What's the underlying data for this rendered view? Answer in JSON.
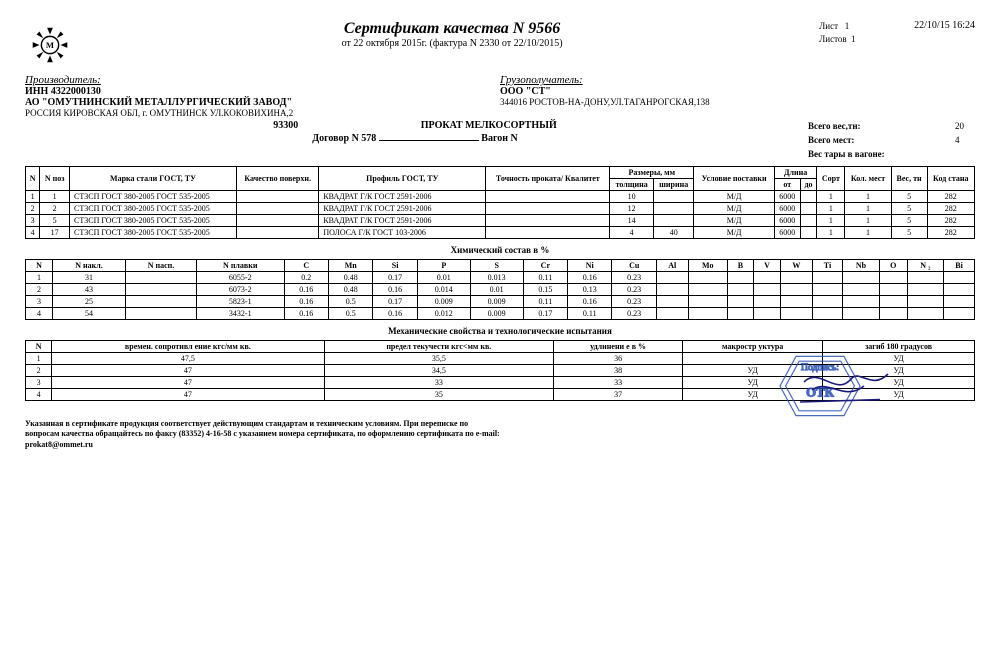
{
  "meta": {
    "title": "Сертификат качества N 9566",
    "date_line": "от  22 октября 2015г.      (фактура N  2330  от 22/10/2015)",
    "sheet_label": "Лист",
    "sheet_val": "1",
    "sheets_label": "Листов",
    "sheets_val": "1",
    "timestamp": "22/10/15   16:24"
  },
  "producer": {
    "label": "Производитель:",
    "inn": "ИНН 4322000130",
    "name": "АО \"ОМУТНИНСКИЙ МЕТАЛЛУРГИЧЕСКИЙ ЗАВОД\"",
    "addr": "РОССИЯ КИРОВСКАЯ ОБЛ, г.      ОМУТНИНСК    УЛ.КОКОВИХИНА,2"
  },
  "consignee": {
    "label": "Грузополучатель:",
    "name": "ООО \"СТ\"",
    "addr": "344016 РОСТОВ-НА-ДОНУ,УЛ.ТАГАНРОГСКАЯ,138"
  },
  "mid": {
    "code": "93300",
    "product": "ПРОКАТ МЕЛКОСОРТНЫЙ",
    "contract": "Договор N 578",
    "wagon": "Вагон N"
  },
  "totals": {
    "weight_l": "Всего вес,тн:",
    "weight_v": "20",
    "places_l": "Всего мест:",
    "places_v": "4",
    "tare_l": "Вес тары в вагоне:"
  },
  "table1": {
    "headers": {
      "n": "N",
      "npos": "N поз",
      "grade": "Марка стали ГОСТ, ТУ",
      "surf": "Качество поверхн.",
      "profile": "Профиль ГОСТ, ТУ",
      "accuracy": "Точность проката/ Квалитет",
      "dims": "Размеры, мм",
      "thick": "толщина",
      "width": "ширина",
      "cond": "Условие поставки",
      "len": "Длина",
      "from": "от",
      "to": "до",
      "sort": "Сорт",
      "qty": "Кол. мест",
      "wt": "Вес, тн",
      "mill": "Код стана"
    },
    "rows": [
      {
        "n": "1",
        "pos": "1",
        "grade": "СТ3СП  ГОСТ 380-2005  ГОСТ 535-2005",
        "profile": "КВАДРАТ Г/К   ГОСТ 2591-2006",
        "th": "10",
        "w": "",
        "cond": "М/Д",
        "from": "6000",
        "to": "",
        "sort": "1",
        "qty": "1",
        "wt": "5",
        "mill": "282"
      },
      {
        "n": "2",
        "pos": "2",
        "grade": "СТ3СП  ГОСТ 380-2005  ГОСТ 535-2005",
        "profile": "КВАДРАТ Г/К   ГОСТ 2591-2006",
        "th": "12",
        "w": "",
        "cond": "М/Д",
        "from": "6000",
        "to": "",
        "sort": "1",
        "qty": "1",
        "wt": "5",
        "mill": "282"
      },
      {
        "n": "3",
        "pos": "5",
        "grade": "СТ3СП  ГОСТ 380-2005  ГОСТ 535-2005",
        "profile": "КВАДРАТ Г/К   ГОСТ 2591-2006",
        "th": "14",
        "w": "",
        "cond": "М/Д",
        "from": "6000",
        "to": "",
        "sort": "1",
        "qty": "1",
        "wt": "5",
        "mill": "282"
      },
      {
        "n": "4",
        "pos": "17",
        "grade": "СТ3СП  ГОСТ 380-2005  ГОСТ 535-2005",
        "profile": "ПОЛОСА Г/К   ГОСТ 103-2006",
        "th": "4",
        "w": "40",
        "cond": "М/Д",
        "from": "6000",
        "to": "",
        "sort": "1",
        "qty": "1",
        "wt": "5",
        "mill": "282"
      }
    ]
  },
  "chem": {
    "title": "Химический состав в %",
    "headers": [
      "N",
      "N накл.",
      "N пасп.",
      "N плавки",
      "C",
      "Mn",
      "Si",
      "P",
      "S",
      "Cr",
      "Ni",
      "Cu",
      "Al",
      "Mo",
      "B",
      "V",
      "W",
      "Ti",
      "Nb",
      "O",
      "N ₂",
      "Bi"
    ],
    "rows": [
      [
        "1",
        "31",
        "",
        "6055-2",
        "0.2",
        "0.48",
        "0.17",
        "0.01",
        "0.013",
        "0.11",
        "0.16",
        "0.23",
        "",
        "",
        "",
        "",
        "",
        "",
        "",
        "",
        "",
        ""
      ],
      [
        "2",
        "43",
        "",
        "6073-2",
        "0.16",
        "0.48",
        "0.16",
        "0.014",
        "0.01",
        "0.15",
        "0.13",
        "0.23",
        "",
        "",
        "",
        "",
        "",
        "",
        "",
        "",
        "",
        ""
      ],
      [
        "3",
        "25",
        "",
        "5823-1",
        "0.16",
        "0.5",
        "0.17",
        "0.009",
        "0.009",
        "0.11",
        "0.16",
        "0.23",
        "",
        "",
        "",
        "",
        "",
        "",
        "",
        "",
        "",
        ""
      ],
      [
        "4",
        "54",
        "",
        "3432-1",
        "0.16",
        "0.5",
        "0.16",
        "0.012",
        "0.009",
        "0.17",
        "0.11",
        "0.23",
        "",
        "",
        "",
        "",
        "",
        "",
        "",
        "",
        "",
        ""
      ]
    ]
  },
  "mech": {
    "title": "Механические свойства и технологические испытания",
    "headers": [
      "N",
      "времен. сопротивл ение кгс/мм кв.",
      "предел текучести кгс<мм кв.",
      "удлинени е в %",
      "макростр уктура",
      "загиб 180 градусов"
    ],
    "rows": [
      [
        "1",
        "47,5",
        "35,5",
        "36",
        "",
        "УД"
      ],
      [
        "2",
        "47",
        "34,5",
        "38",
        "УД",
        "УД"
      ],
      [
        "3",
        "47",
        "33",
        "33",
        "УД",
        "УД"
      ],
      [
        "4",
        "47",
        "35",
        "37",
        "УД",
        "УД"
      ]
    ]
  },
  "footer": {
    "note": "Указанная в сертификате продукция соответствует действующим стандартам и техническим условиям.  При переписке по вопросам качества обращайтесь по факсу (83352) 4-16-58 с указанием номера сертификата,  по оформлению сертификата по e-mail: prokat8@ommet.ru",
    "sign_label": "Подпись:",
    "stamp_text": "ОТК"
  },
  "colors": {
    "text": "#000000",
    "stamp": "#2a4fb0",
    "bg": "#ffffff"
  }
}
